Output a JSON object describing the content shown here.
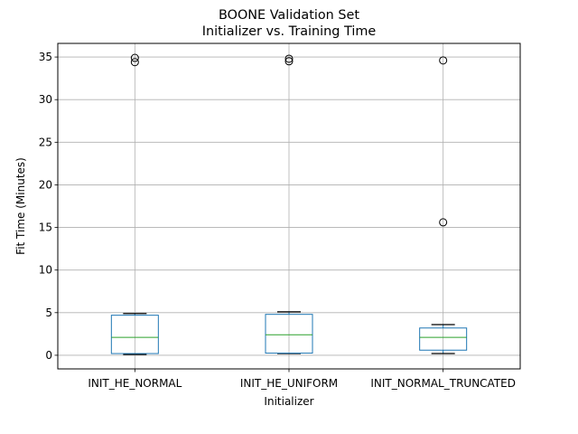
{
  "chart_data": {
    "type": "box",
    "title": [
      "BOONE Validation Set",
      "Initializer vs. Training Time"
    ],
    "xlabel": "Initializer",
    "ylabel": "Fit Time (Minutes)",
    "ylim": [
      -1.6,
      36.6
    ],
    "yticks": [
      0,
      5,
      10,
      15,
      20,
      25,
      30,
      35
    ],
    "grid": true,
    "colors": {
      "box": "#1f77b4",
      "median": "#2ca02c",
      "whisker": "#000000",
      "grid": "#b0b0b0",
      "outlier": "#000000"
    },
    "categories": [
      "INIT_HE_NORMAL",
      "INIT_HE_UNIFORM",
      "INIT_NORMAL_TRUNCATED"
    ],
    "boxes": [
      {
        "name": "INIT_HE_NORMAL",
        "whisker_low": 0.1,
        "q1": 0.2,
        "median": 2.1,
        "q3": 4.7,
        "whisker_high": 4.9,
        "outliers": [
          34.9,
          34.4
        ]
      },
      {
        "name": "INIT_HE_UNIFORM",
        "whisker_low": 0.2,
        "q1": 0.25,
        "median": 2.4,
        "q3": 4.8,
        "whisker_high": 5.1,
        "outliers": [
          34.8,
          34.5
        ]
      },
      {
        "name": "INIT_NORMAL_TRUNCATED",
        "whisker_low": 0.2,
        "q1": 0.6,
        "median": 2.1,
        "q3": 3.2,
        "whisker_high": 3.6,
        "outliers": [
          34.6,
          15.6
        ]
      }
    ]
  }
}
